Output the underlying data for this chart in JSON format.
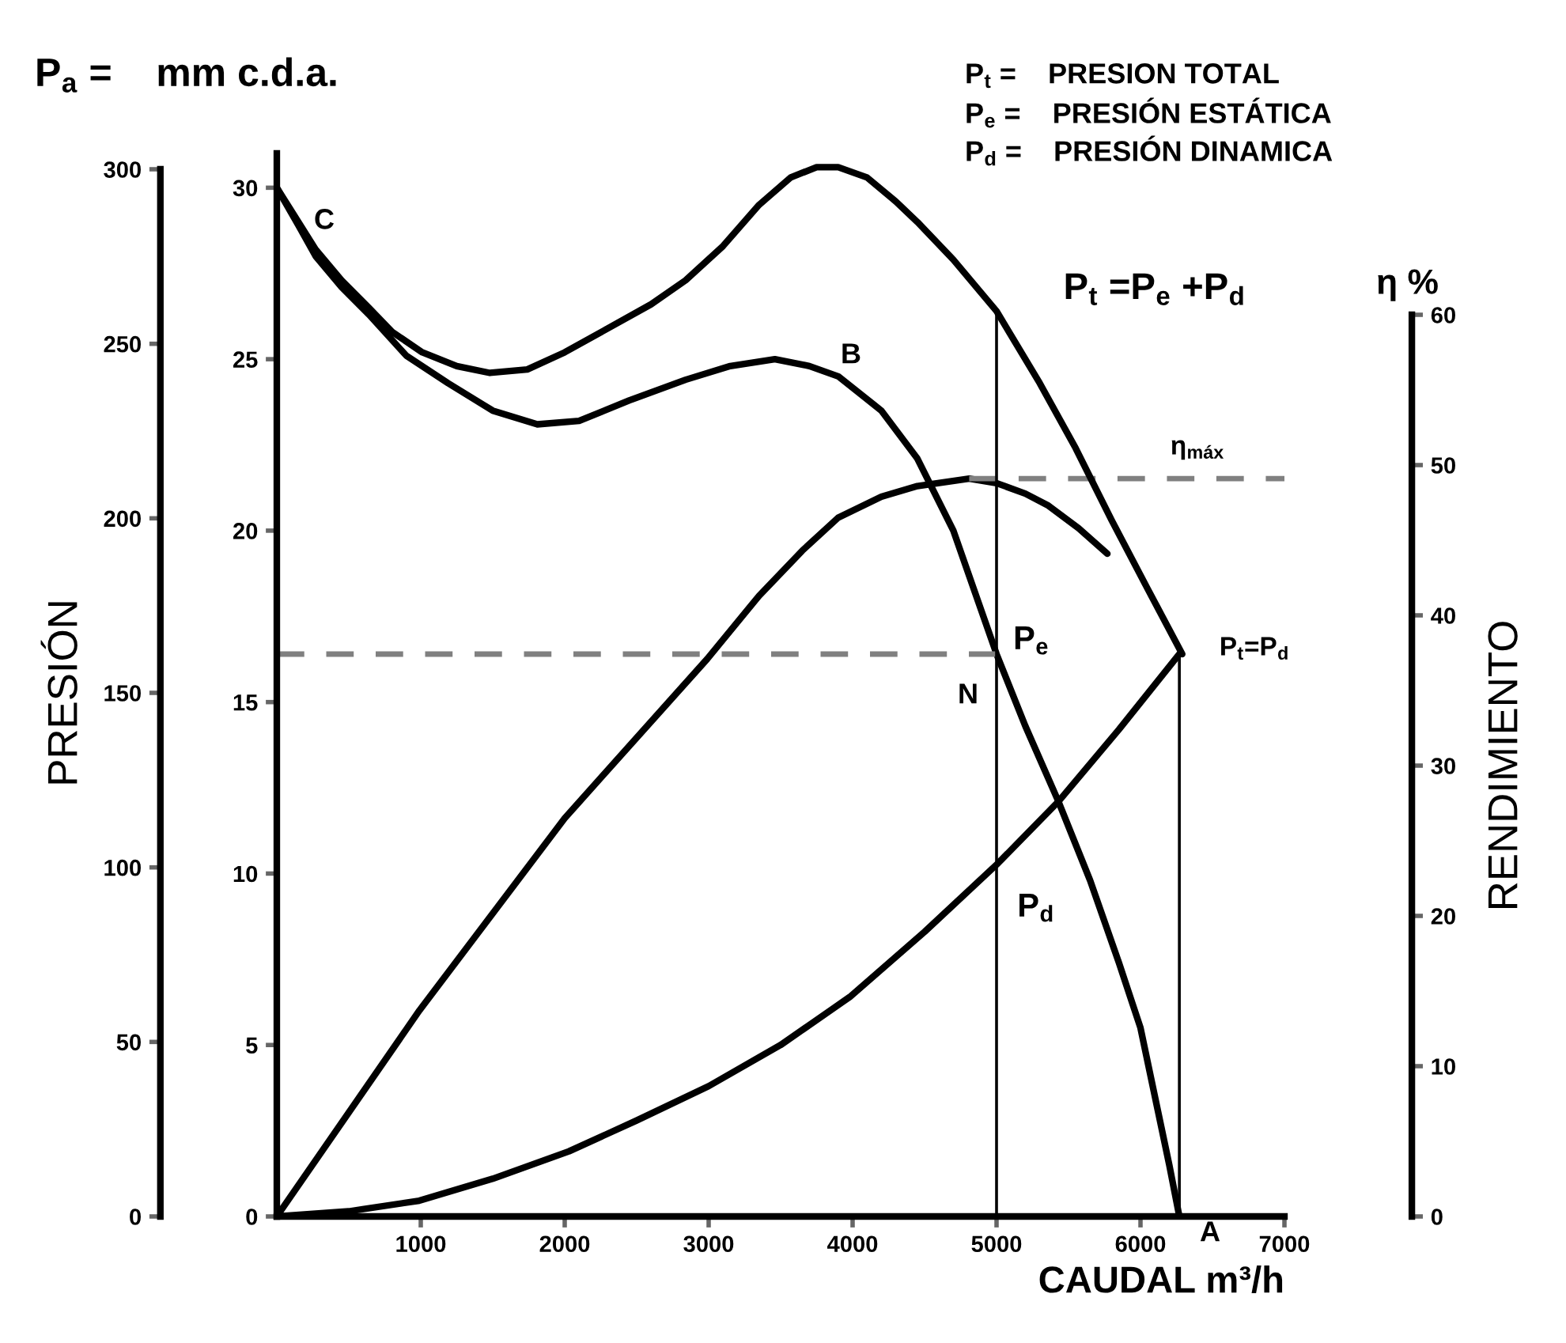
{
  "chart_data": {
    "type": "line",
    "xlabel": "CAUDAL m³/h",
    "ylabel": "PRESIÓN",
    "y2label": "RENDIMIENTO",
    "xlim": [
      0,
      7000
    ],
    "xticks": [
      1000,
      2000,
      3000,
      4000,
      5000,
      6000,
      7000
    ],
    "ylim": [
      0,
      31
    ],
    "yticks": [
      0,
      5,
      10,
      15,
      20,
      25,
      30
    ],
    "y2lim": [
      0,
      60
    ],
    "y2ticks": [
      0,
      10,
      20,
      30,
      40,
      50,
      60
    ],
    "y3lim": [
      0,
      300
    ],
    "y3ticks": [
      0,
      50,
      100,
      150,
      200,
      250,
      300
    ],
    "grid": false,
    "marker": "none",
    "line_style": "solid",
    "series": [
      {
        "color": "#000000",
        "x": [
          0,
          150,
          270,
          450,
          640,
          800,
          1010,
          1250,
          1480,
          1740,
          2000,
          2300,
          2600,
          2840,
          3100,
          3350,
          3570,
          3750,
          3900,
          4100,
          4300,
          4450,
          4700,
          5000,
          5300,
          5550,
          5800,
          6050,
          6290
        ],
        "values": [
          30,
          29.0,
          28.2,
          27.3,
          26.5,
          25.8,
          25.2,
          24.8,
          24.6,
          24.7,
          25.2,
          25.9,
          26.6,
          27.3,
          28.3,
          29.5,
          30.3,
          30.6,
          30.6,
          30.3,
          29.6,
          29.0,
          27.9,
          26.4,
          24.3,
          22.4,
          20.3,
          18.3,
          16.4
        ]
      },
      {
        "color": "#000000",
        "x": [
          0,
          150,
          270,
          450,
          640,
          900,
          1190,
          1500,
          1810,
          2100,
          2450,
          2840,
          3150,
          3460,
          3700,
          3900,
          4200,
          4450,
          4700,
          5000,
          5200,
          5430,
          5650,
          5850,
          6000,
          6120,
          6200,
          6270
        ],
        "values": [
          30,
          28.9,
          28.0,
          27.1,
          26.3,
          25.1,
          24.3,
          23.5,
          23.1,
          23.2,
          23.8,
          24.4,
          24.8,
          25.0,
          24.8,
          24.5,
          23.5,
          22.1,
          20.0,
          16.4,
          14.3,
          12.1,
          9.8,
          7.4,
          5.5,
          3.1,
          1.5,
          0
        ]
      },
      {
        "color": "#000000",
        "x": [
          0,
          500,
          990,
          1500,
          2030,
          2500,
          3000,
          3500,
          3980,
          4500,
          5010,
          5430,
          5850,
          6270
        ],
        "values": [
          0,
          0.15,
          0.46,
          1.1,
          1.9,
          2.8,
          3.8,
          5.0,
          6.4,
          8.3,
          10.3,
          12.1,
          14.2,
          16.4
        ]
      },
      {
        "color": "#000000",
        "axis": "y2",
        "x": [
          0,
          990,
          2000,
          2990,
          3350,
          3650,
          3900,
          4200,
          4450,
          4810,
          5000,
          5200,
          5360,
          5570,
          5770
        ],
        "values": [
          0,
          13.7,
          26.5,
          37.1,
          41.3,
          44.3,
          46.5,
          47.9,
          48.6,
          49.1,
          48.8,
          48.1,
          47.3,
          45.8,
          44.1
        ]
      }
    ],
    "ref_lines": [
      {
        "axis": "y",
        "value": 16.4,
        "line_style": "dashed",
        "color": "#808080"
      },
      {
        "axis": "y2",
        "value": 49.1,
        "line_style": "dashed",
        "color": "#808080"
      },
      {
        "axis": "x",
        "value": 5000,
        "line_style": "solid",
        "color": "#000000"
      },
      {
        "axis": "x",
        "value": 6270,
        "line_style": "solid",
        "color": "#000000"
      }
    ],
    "annotations": [
      "P$_{a}$ =    mm c.d.a.",
      "P$_{t}$ =    PRESION TOTAL",
      "P$_{e}$ =    PRESIÓN ESTÁTICA",
      "P$_{d}$ =    PRESIÓN DINAMICA",
      "η %",
      "C",
      "B",
      "N",
      "P$_{e}$",
      "P$_{d}$",
      "A",
      "P$_{t}$=P$_{d}$",
      "P$_{t}$ =P$_{e}$ +P$_{d}$",
      "η$_{máx}$"
    ]
  }
}
